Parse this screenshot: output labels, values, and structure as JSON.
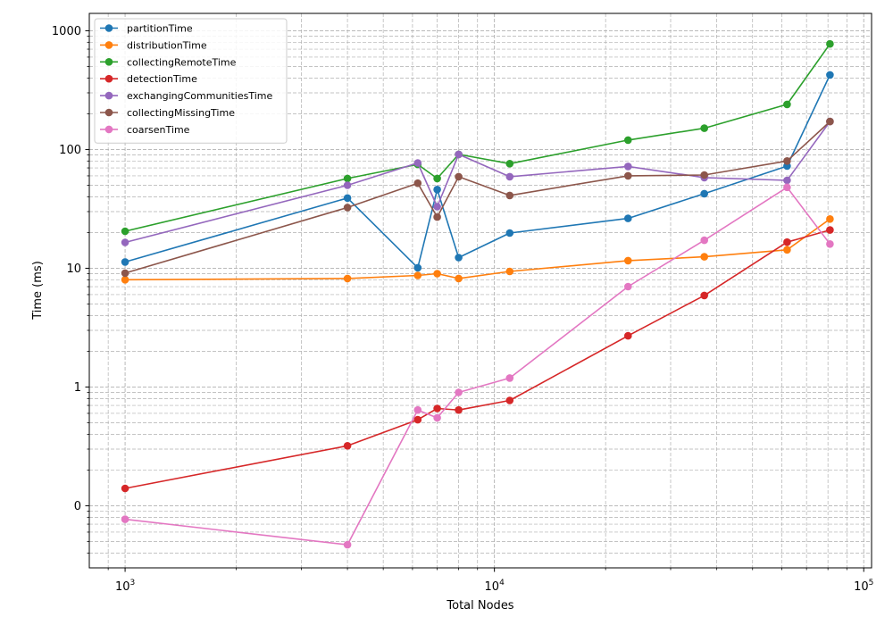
{
  "chart_data": {
    "type": "line",
    "xlabel": "Total Nodes",
    "ylabel": "Time (ms)",
    "xscale": "log",
    "yscale": "log",
    "xlim": [
      800,
      105000
    ],
    "ylim": [
      0.03,
      1400
    ],
    "grid": true,
    "legend_position": "top-left",
    "x_tick_labels": [
      {
        "base": "10",
        "exp": "3",
        "value": 1000
      },
      {
        "base": "10",
        "exp": "4",
        "value": 10000
      },
      {
        "base": "10",
        "exp": "5",
        "value": 100000
      }
    ],
    "y_tick_labels": [
      {
        "label": "0",
        "value": 0.1
      },
      {
        "label": "1",
        "value": 1
      },
      {
        "label": "10",
        "value": 10
      },
      {
        "label": "100",
        "value": 100
      },
      {
        "label": "1000",
        "value": 1000
      }
    ],
    "x": [
      1000,
      4000,
      6200,
      7000,
      8000,
      11000,
      23000,
      37000,
      62000,
      81000
    ],
    "series": [
      {
        "name": "partitionTime",
        "color": "#1f77b4",
        "y": [
          11.3,
          39,
          10.1,
          46,
          12.3,
          19.8,
          26.3,
          42.5,
          72.5,
          425
        ]
      },
      {
        "name": "distributionTime",
        "color": "#ff7f0e",
        "y": [
          8.0,
          8.2,
          8.7,
          9.0,
          8.2,
          9.4,
          11.6,
          12.5,
          14.3,
          26
        ]
      },
      {
        "name": "collectingRemoteTime",
        "color": "#2ca02c",
        "y": [
          20.5,
          57,
          75,
          57,
          91,
          76,
          120,
          151,
          240,
          775
        ]
      },
      {
        "name": "detectionTime",
        "color": "#d62728",
        "y": [
          0.14,
          0.32,
          0.53,
          0.66,
          0.64,
          0.77,
          2.7,
          5.9,
          16.6,
          21
        ]
      },
      {
        "name": "exchangingCommunitiesTime",
        "color": "#9467bd",
        "y": [
          16.5,
          50,
          77,
          33,
          91,
          59,
          72,
          58,
          55,
          172
        ]
      },
      {
        "name": "collectingMissingTime",
        "color": "#8c564b",
        "y": [
          9.1,
          32.5,
          52,
          27,
          59,
          41,
          60,
          61,
          80,
          172
        ]
      },
      {
        "name": "coarsenTime",
        "color": "#e377c2",
        "y": [
          0.077,
          0.047,
          0.64,
          0.55,
          0.9,
          1.19,
          7.0,
          17.2,
          48,
          16
        ]
      }
    ]
  }
}
